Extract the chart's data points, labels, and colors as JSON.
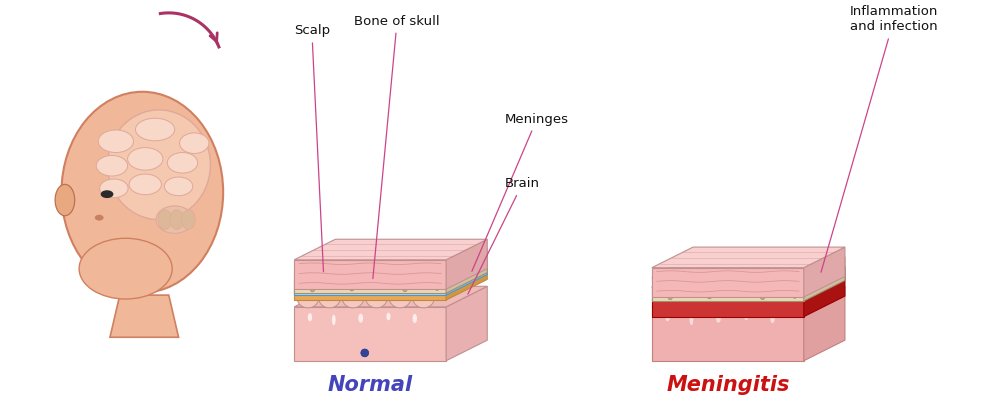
{
  "background_color": "#ffffff",
  "labels": {
    "scalp": "Scalp",
    "bone_of_skull": "Bone of skull",
    "meninges": "Meninges",
    "brain": "Brain",
    "inflammation": "Inflammation\nand infection",
    "normal": "Normal",
    "meningitis": "Meningitis"
  },
  "colors": {
    "scalp_pink": "#f5b8b8",
    "scalp_top": "#f8d0d0",
    "scalp_side": "#e0a8a8",
    "bone_top": "#ede0c8",
    "bone_front": "#e8d8b8",
    "bone_side": "#d0c0a0",
    "bone_dot": "#c0aa88",
    "meninges_blue": "#a0d8ef",
    "meninges_blue_side": "#80c0e0",
    "meninges_orange": "#e8a855",
    "meninges_orange_side": "#d09840",
    "brain_pink": "#f5c8c0",
    "brain_top": "#f0bab8",
    "brain_side": "#e8b0b0",
    "vessel_normal": "#cc7070",
    "vessel_meningitis": "#992244",
    "inflamed_top": "#dd4444",
    "inflamed_front": "#cc3333",
    "inflamed_side": "#aa1111",
    "outline": "#707070",
    "bone_outline": "#a09070",
    "scalp_outline": "#c09090",
    "brain_outline": "#c09090",
    "blue_outline": "#6090c0",
    "orange_outline": "#c08840",
    "label_line": "#cc4488",
    "normal_text": "#4444bb",
    "meningitis_text": "#cc1111",
    "head_skin": "#f0b898",
    "head_skin_dark": "#d08060",
    "head_brain_fill": "#f5c8b0",
    "head_fold": "#f8d8c8",
    "head_fold_edge": "#e0a898",
    "ear_fill": "#e8a880",
    "ear_edge": "#c07050",
    "arrow_color": "#aa3366"
  }
}
